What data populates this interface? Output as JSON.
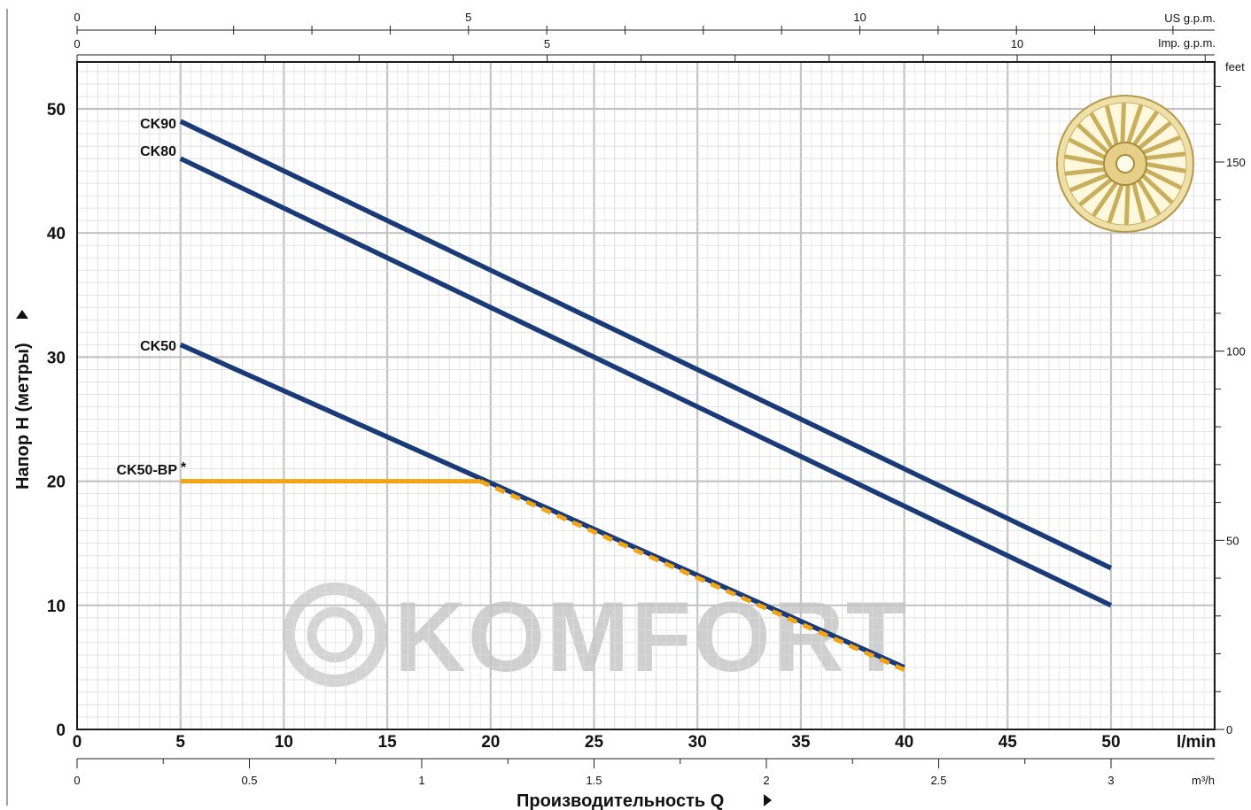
{
  "watermark": "KOMFORT",
  "colors": {
    "series_blue": "#1a3a78",
    "series_orange": "#f2a413",
    "grid_major": "#c4c4c4",
    "grid_minor": "#dedede"
  },
  "chart_data": {
    "type": "line",
    "xlabel": "Производительность Q",
    "ylabel": "Напор H (метры)",
    "x_unit": "l/min",
    "xlim": [
      0,
      55
    ],
    "ylim": [
      0,
      55
    ],
    "x_ticks": [
      "0",
      "5",
      "10",
      "15",
      "20",
      "25",
      "30",
      "35",
      "40",
      "45",
      "50"
    ],
    "y_ticks": [
      "0",
      "10",
      "20",
      "30",
      "40",
      "50"
    ],
    "grid": true,
    "series": [
      {
        "name": "CK90",
        "color": "#1a3a78",
        "style": "solid",
        "points": [
          [
            5,
            49
          ],
          [
            50,
            13
          ]
        ]
      },
      {
        "name": "CK80",
        "color": "#1a3a78",
        "style": "solid",
        "points": [
          [
            5,
            46
          ],
          [
            50,
            10
          ]
        ]
      },
      {
        "name": "CK50",
        "color": "#1a3a78",
        "style": "solid",
        "points": [
          [
            5,
            31
          ],
          [
            40,
            5
          ]
        ]
      },
      {
        "name": "CK50-BP",
        "marker": "*",
        "color": "#f2a413",
        "style": "solid-then-dashed",
        "points": [
          [
            5,
            20
          ],
          [
            19.5,
            20
          ],
          [
            40,
            4.8
          ]
        ]
      }
    ],
    "secondary_axes": {
      "m3h": {
        "unit": "m³/h",
        "ticks": [
          "0",
          "0.5",
          "1",
          "1.5",
          "2",
          "2.5",
          "3"
        ]
      },
      "us_gpm": {
        "unit": "US g.p.m.",
        "ticks": [
          "0",
          "5",
          "10"
        ]
      },
      "imp_gpm": {
        "unit": "Imp. g.p.m.",
        "ticks": [
          "0",
          "5",
          "10"
        ]
      },
      "feet": {
        "unit": "feet",
        "ticks": [
          "0",
          "50",
          "100",
          "150"
        ]
      }
    }
  }
}
